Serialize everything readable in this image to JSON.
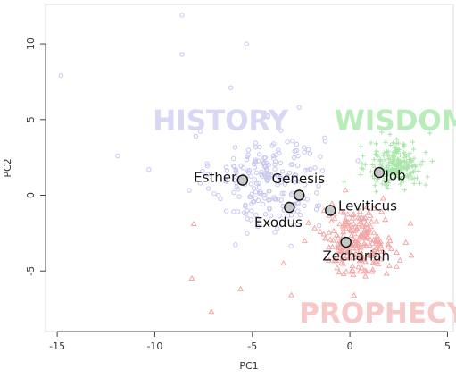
{
  "chart_data": {
    "type": "scatter",
    "xlabel": "PC1",
    "ylabel": "PC2",
    "xlim": [
      -15.6,
      5.3
    ],
    "ylim": [
      -9.0,
      12.6
    ],
    "x_ticks": [
      -15,
      -10,
      -5,
      0,
      5
    ],
    "y_ticks": [
      -5,
      0,
      5,
      10
    ],
    "grid": false,
    "groups": [
      {
        "name": "HISTORY",
        "marker": "circle",
        "color": "#c6c6f0",
        "label_color": "#d8d8f4",
        "label_at": [
          -10.1,
          4.3
        ],
        "cluster": {
          "center": [
            -4.2,
            1.0
          ],
          "spread": [
            2.6,
            3.0
          ],
          "count": 230
        },
        "outliers": [
          [
            -14.8,
            7.9
          ],
          [
            -8.6,
            11.9
          ],
          [
            -5.3,
            10.0
          ],
          [
            -11.9,
            2.6
          ],
          [
            -10.3,
            1.7
          ],
          [
            -7.9,
            3.9
          ],
          [
            -6.1,
            7.1
          ],
          [
            -8.6,
            9.3
          ],
          [
            -2.6,
            5.8
          ]
        ]
      },
      {
        "name": "WISDOM",
        "marker": "plus",
        "color": "#a9e6a9",
        "label_color": "#b9ecb9",
        "label_at": [
          -0.8,
          4.3
        ],
        "cluster": {
          "center": [
            2.4,
            2.0
          ],
          "spread": [
            1.3,
            1.4
          ],
          "count": 220
        },
        "outliers": [
          [
            3.3,
            4.9
          ],
          [
            4.1,
            4.1
          ],
          [
            -0.3,
            0.9
          ]
        ]
      },
      {
        "name": "PROPHECY",
        "marker": "triangle",
        "color": "#f2a7a7",
        "label_color": "#f6c8c8",
        "label_at": [
          -2.6,
          -8.4
        ],
        "cluster": {
          "center": [
            0.4,
            -3.0
          ],
          "spread": [
            1.7,
            2.0
          ],
          "count": 220
        },
        "outliers": [
          [
            -7.1,
            -7.7
          ],
          [
            -8.0,
            -1.9
          ],
          [
            -8.1,
            -5.5
          ],
          [
            -5.6,
            -6.2
          ],
          [
            -3.0,
            -6.6
          ],
          [
            -3.4,
            -4.5
          ],
          [
            -1.9,
            -7.3
          ]
        ]
      }
    ],
    "labeled_points": [
      {
        "name": "Esther",
        "x": -5.5,
        "y": 1.0,
        "label_x": -8.0,
        "label_y": 0.9
      },
      {
        "name": "Genesis",
        "x": -2.6,
        "y": 0.0,
        "label_x": -4.0,
        "label_y": 0.8
      },
      {
        "name": "Exodus",
        "x": -3.1,
        "y": -0.8,
        "label_x": -4.9,
        "label_y": -2.1
      },
      {
        "name": "Leviticus",
        "x": -1.0,
        "y": -1.0,
        "label_x": -0.6,
        "label_y": -1.0
      },
      {
        "name": "Job",
        "x": 1.5,
        "y": 1.5,
        "label_x": 1.8,
        "label_y": 1.0
      },
      {
        "name": "Zechariah",
        "x": -0.2,
        "y": -3.1,
        "label_x": -1.4,
        "label_y": -4.3
      }
    ]
  }
}
